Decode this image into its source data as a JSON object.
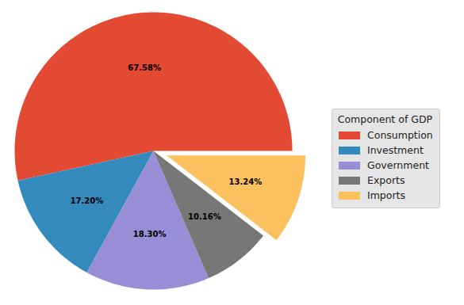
{
  "chart_data": {
    "type": "pie",
    "categories": [
      "Consumption",
      "Investment",
      "Government",
      "Exports",
      "Imports"
    ],
    "values": [
      67.58,
      17.2,
      18.3,
      10.16,
      13.24
    ],
    "value_labels": [
      "67.58%",
      "17.20%",
      "18.30%",
      "10.16%",
      "13.24%"
    ],
    "colors": [
      "#E24A33",
      "#348ABD",
      "#988ED5",
      "#777777",
      "#FBC15E"
    ],
    "data_labels": true,
    "legend": "right",
    "legend_title": "Component of GDP"
  }
}
